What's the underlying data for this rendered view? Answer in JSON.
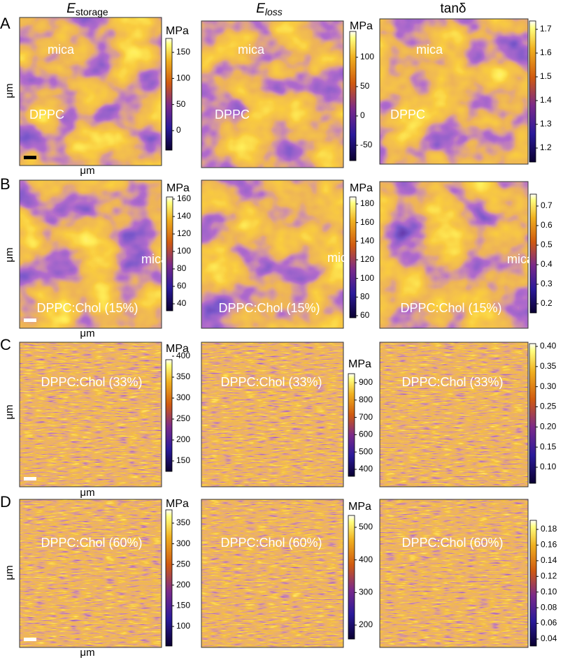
{
  "columns": [
    {
      "base": "E",
      "sub": "storage"
    },
    {
      "base": "E",
      "sub": "loss"
    },
    {
      "text": "tanδ"
    }
  ],
  "rows": [
    {
      "letter": "A",
      "y_label": "μm",
      "x_label": "μm",
      "panels": [
        {
          "labels": [
            "mica",
            "DPPC"
          ],
          "unit": "MPa",
          "ticks": [
            "150",
            "100",
            "50",
            "0"
          ]
        },
        {
          "labels": [
            "mica",
            "DPPC"
          ],
          "unit": "MPa",
          "ticks": [
            "100",
            "50",
            "0",
            "-50"
          ]
        },
        {
          "labels": [
            "mica",
            "DPPC"
          ],
          "ticks": [
            "1.7",
            "1.6",
            "1.5",
            "1.4",
            "1.3",
            "1.2"
          ]
        }
      ]
    },
    {
      "letter": "B",
      "y_label": "μm",
      "x_label": "μm",
      "panels": [
        {
          "labels": [
            "mica",
            "DPPC:Chol (15%)"
          ],
          "unit": "MPa",
          "ticks": [
            "160",
            "140",
            "120",
            "100",
            "80",
            "60",
            "40"
          ]
        },
        {
          "labels": [
            "mica",
            "DPPC:Chol (15%)"
          ],
          "unit": "MPa",
          "ticks": [
            "180",
            "160",
            "140",
            "120",
            "100",
            "80",
            "60"
          ]
        },
        {
          "labels": [
            "mica",
            "DPPC:Chol (15%)"
          ],
          "ticks": [
            "0.7",
            "0.6",
            "0.5",
            "0.4",
            "0.3",
            "0.2"
          ]
        }
      ]
    },
    {
      "letter": "C",
      "y_label": "μm",
      "x_label": "μm",
      "panels": [
        {
          "labels": [
            "DPPC:Chol (33%)"
          ],
          "unit": "MPa",
          "ticks": [
            "400",
            "350",
            "300",
            "250",
            "200",
            "150"
          ]
        },
        {
          "labels": [
            "DPPC:Chol (33%)"
          ],
          "unit": "MPa",
          "ticks": [
            "900",
            "800",
            "700",
            "600",
            "500",
            "400"
          ]
        },
        {
          "labels": [
            "DPPC:Chol (33%)"
          ],
          "ticks": [
            "0.40",
            "0.35",
            "0.30",
            "0.25",
            "0.20",
            "0.15",
            "0.10"
          ]
        }
      ]
    },
    {
      "letter": "D",
      "y_label": "μm",
      "x_label": "μm",
      "panels": [
        {
          "labels": [
            "DPPC:Chol (60%)"
          ],
          "unit": "MPa",
          "ticks": [
            "350",
            "300",
            "250",
            "200",
            "150",
            "100"
          ]
        },
        {
          "labels": [
            "DPPC:Chol (60%)"
          ],
          "unit": "MPa",
          "ticks": [
            "500",
            "400",
            "300",
            "200"
          ]
        },
        {
          "labels": [
            "DPPC:Chol (60%)"
          ],
          "ticks": [
            "0.18",
            "0.16",
            "0.14",
            "0.12",
            "0.10",
            "0.08",
            "0.06",
            "0.04"
          ]
        }
      ]
    }
  ]
}
